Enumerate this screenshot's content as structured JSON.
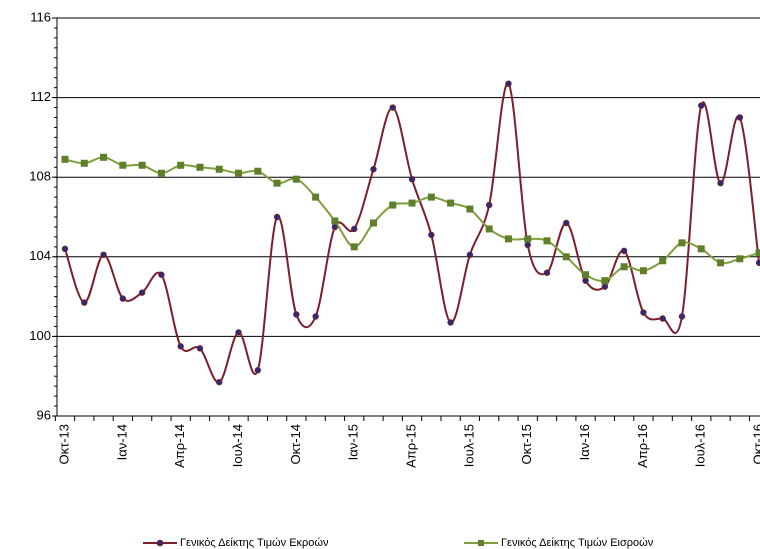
{
  "chart_data": {
    "type": "line",
    "categories": [
      "Οκτ-13",
      null,
      null,
      "Ιαν-14",
      null,
      null,
      "Απρ-14",
      null,
      null,
      "Ιουλ-14",
      null,
      null,
      "Οκτ-14",
      null,
      null,
      "Ιαν-15",
      null,
      null,
      "Απρ-15",
      null,
      null,
      "Ιουλ-15",
      null,
      null,
      "Οκτ-15",
      null,
      null,
      "Ιαν-16",
      null,
      null,
      "Απρ-16",
      null,
      null,
      "Ιουλ-16",
      null,
      null,
      "Οκτ-16"
    ],
    "series": [
      {
        "name": "Γενικός Δείκτης Τιμών Εκροών",
        "color": "#7b1f2b",
        "marker_color": "#2b2b7a",
        "marker": "circle",
        "values": [
          104.4,
          101.7,
          104.1,
          101.9,
          102.2,
          103.1,
          99.5,
          99.4,
          97.7,
          100.2,
          98.3,
          106.0,
          101.1,
          101.0,
          105.5,
          105.4,
          108.4,
          111.5,
          107.9,
          105.1,
          100.7,
          104.1,
          106.6,
          112.7,
          104.6,
          103.2,
          105.7,
          102.8,
          102.5,
          104.3,
          101.2,
          100.9,
          101.0,
          111.6,
          107.7,
          111.0,
          103.7
        ]
      },
      {
        "name": "Γενικός Δείκτης Τιμών Εισροών",
        "color": "#7f9f3f",
        "marker_color": "#5f7f2a",
        "marker": "square",
        "values": [
          108.9,
          108.7,
          109.0,
          108.6,
          108.6,
          108.2,
          108.6,
          108.5,
          108.4,
          108.2,
          108.3,
          107.7,
          107.9,
          107.0,
          105.8,
          104.5,
          105.7,
          106.6,
          106.7,
          107.0,
          106.7,
          106.4,
          105.4,
          104.9,
          104.9,
          104.8,
          104.0,
          103.1,
          102.8,
          103.5,
          103.3,
          103.8,
          104.7,
          104.4,
          103.7,
          103.9,
          104.2
        ]
      }
    ],
    "ylim": [
      96,
      116
    ],
    "yticks": [
      96,
      100,
      104,
      108,
      112,
      116
    ],
    "grid": true,
    "smooth": true,
    "legend": "bottom"
  }
}
